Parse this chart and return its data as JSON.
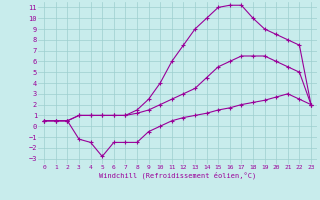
{
  "xlabel": "Windchill (Refroidissement éolien,°C)",
  "xlim": [
    -0.5,
    23.5
  ],
  "ylim": [
    -3.5,
    11.5
  ],
  "xticks": [
    0,
    1,
    2,
    3,
    4,
    5,
    6,
    7,
    8,
    9,
    10,
    11,
    12,
    13,
    14,
    15,
    16,
    17,
    18,
    19,
    20,
    21,
    22,
    23
  ],
  "yticks": [
    -3,
    -2,
    -1,
    0,
    1,
    2,
    3,
    4,
    5,
    6,
    7,
    8,
    9,
    10,
    11
  ],
  "bg_color": "#c8ecec",
  "grid_color": "#9dcfcf",
  "line_color": "#990099",
  "line1_x": [
    0,
    1,
    2,
    3,
    4,
    5,
    6,
    7,
    8,
    9,
    10,
    11,
    12,
    13,
    14,
    15,
    16,
    17,
    18,
    19,
    20,
    21,
    22,
    23
  ],
  "line1_y": [
    0.5,
    0.5,
    0.5,
    1.0,
    1.0,
    1.0,
    1.0,
    1.0,
    1.2,
    1.5,
    2.0,
    2.5,
    3.0,
    3.5,
    4.5,
    5.5,
    6.0,
    6.5,
    6.5,
    6.5,
    6.0,
    5.5,
    5.0,
    2.0
  ],
  "line2_x": [
    0,
    1,
    2,
    3,
    4,
    5,
    6,
    7,
    8,
    9,
    10,
    11,
    12,
    13,
    14,
    15,
    16,
    17,
    18,
    19,
    20,
    21,
    22,
    23
  ],
  "line2_y": [
    0.5,
    0.5,
    0.5,
    1.0,
    1.0,
    1.0,
    1.0,
    1.0,
    1.5,
    2.5,
    4.0,
    6.0,
    7.5,
    9.0,
    10.0,
    11.0,
    11.2,
    11.2,
    10.0,
    9.0,
    8.5,
    8.0,
    7.5,
    2.0
  ],
  "line3_x": [
    0,
    1,
    2,
    3,
    4,
    5,
    6,
    7,
    8,
    9,
    10,
    11,
    12,
    13,
    14,
    15,
    16,
    17,
    18,
    19,
    20,
    21,
    22,
    23
  ],
  "line3_y": [
    0.5,
    0.5,
    0.5,
    -1.2,
    -1.5,
    -2.8,
    -1.5,
    -1.5,
    -1.5,
    -0.5,
    0.0,
    0.5,
    0.8,
    1.0,
    1.2,
    1.5,
    1.7,
    2.0,
    2.2,
    2.4,
    2.7,
    3.0,
    2.5,
    2.0
  ]
}
